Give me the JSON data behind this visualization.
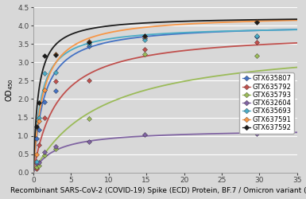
{
  "title": "",
  "xlabel": "Recombinant SARS-CoV-2 (COVID-19) Spike (ECD) Protein, BF.7 / Omicron variant (nM)",
  "ylabel": "OD 450",
  "xlim": [
    0,
    35
  ],
  "ylim": [
    0,
    4.5
  ],
  "xticks": [
    0,
    5,
    10,
    15,
    20,
    25,
    30,
    35
  ],
  "yticks": [
    0,
    0.5,
    1.0,
    1.5,
    2.0,
    2.5,
    3.0,
    3.5,
    4.0,
    4.5
  ],
  "series": [
    {
      "label": "GTX635807",
      "color": "#4472C4",
      "scatter_x": [
        0.37,
        0.74,
        1.48,
        2.96,
        7.41,
        14.81,
        29.63
      ],
      "scatter_y": [
        0.92,
        1.17,
        1.93,
        2.22,
        3.45,
        3.65,
        3.71
      ],
      "Bmax": 4.05,
      "Kd": 1.4
    },
    {
      "label": "GTX635792",
      "color": "#C0504D",
      "scatter_x": [
        0.37,
        0.74,
        1.48,
        2.96,
        7.41,
        14.81,
        29.63
      ],
      "scatter_y": [
        0.1,
        0.75,
        1.48,
        2.48,
        2.5,
        3.35,
        3.55
      ],
      "Bmax": 3.85,
      "Kd": 3.2
    },
    {
      "label": "GTX635793",
      "color": "#9BBB59",
      "scatter_x": [
        0.37,
        0.74,
        1.48,
        2.96,
        7.41,
        14.81,
        29.63
      ],
      "scatter_y": [
        0.15,
        0.18,
        0.48,
        0.65,
        1.47,
        3.22,
        3.18
      ],
      "Bmax": 3.6,
      "Kd": 9.0
    },
    {
      "label": "GTX632604",
      "color": "#8064A2",
      "scatter_x": [
        0.37,
        0.74,
        1.48,
        2.96,
        7.41,
        14.81,
        29.63
      ],
      "scatter_y": [
        0.25,
        0.27,
        0.55,
        0.7,
        0.83,
        1.03,
        1.05
      ],
      "Bmax": 1.18,
      "Kd": 2.8
    },
    {
      "label": "GTX635693",
      "color": "#4BACC6",
      "scatter_x": [
        0.37,
        0.74,
        1.48,
        2.96,
        7.41,
        14.81,
        29.63
      ],
      "scatter_y": [
        0.3,
        1.5,
        2.7,
        2.72,
        3.5,
        3.62,
        3.72
      ],
      "Bmax": 4.0,
      "Kd": 1.0
    },
    {
      "label": "GTX637591",
      "color": "#F79646",
      "scatter_x": [
        0.37,
        0.74,
        1.48,
        2.96,
        7.41,
        14.81,
        29.63
      ],
      "scatter_y": [
        0.5,
        1.4,
        2.25,
        3.22,
        3.58,
        3.7,
        4.12
      ],
      "Bmax": 4.3,
      "Kd": 1.3
    },
    {
      "label": "GTX637592",
      "color": "#1C1C1C",
      "scatter_x": [
        0.37,
        0.74,
        1.48,
        2.96,
        7.41,
        14.81,
        29.63
      ],
      "scatter_y": [
        1.25,
        1.9,
        3.18,
        3.2,
        3.55,
        3.72,
        4.1
      ],
      "Bmax": 4.25,
      "Kd": 0.65
    }
  ],
  "bg_color": "#e8e8e8",
  "legend_fontsize": 6.0,
  "axis_fontsize": 6.5,
  "tick_fontsize": 6.5
}
